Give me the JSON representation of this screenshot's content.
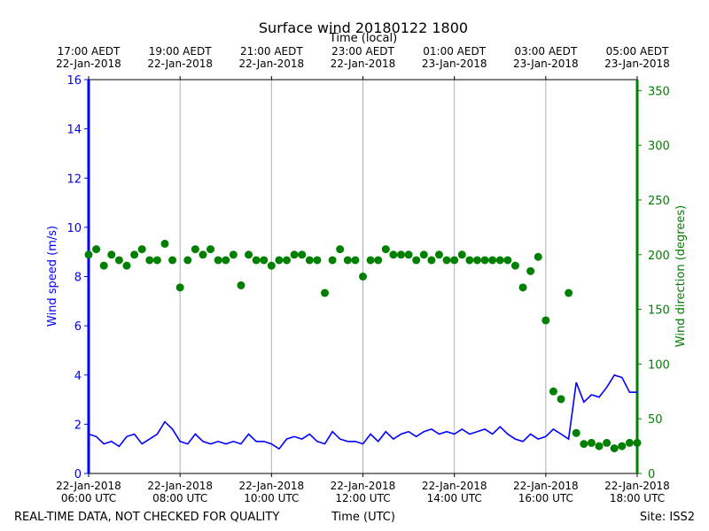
{
  "chart_data": {
    "type": "line-scatter",
    "title": "Surface wind 20180122 1800",
    "x_label": "Time (UTC)",
    "x2_label": "Time (local)",
    "y_label": "Wind speed (m/s)",
    "y2_label": "Wind direction (degrees)",
    "footer_left": "REAL-TIME DATA, NOT CHECKED FOR QUALITY",
    "footer_right": "Site: ISS2",
    "grid": "x",
    "xlim": [
      "2018-01-22T06:00",
      "2018-01-22T18:00"
    ],
    "xticks": [
      {
        "value": "2018-01-22T06:00",
        "label": [
          "22-Jan-2018",
          "06:00 UTC"
        ]
      },
      {
        "value": "2018-01-22T08:00",
        "label": [
          "22-Jan-2018",
          "08:00 UTC"
        ]
      },
      {
        "value": "2018-01-22T10:00",
        "label": [
          "22-Jan-2018",
          "10:00 UTC"
        ]
      },
      {
        "value": "2018-01-22T12:00",
        "label": [
          "22-Jan-2018",
          "12:00 UTC"
        ]
      },
      {
        "value": "2018-01-22T14:00",
        "label": [
          "22-Jan-2018",
          "14:00 UTC"
        ]
      },
      {
        "value": "2018-01-22T16:00",
        "label": [
          "22-Jan-2018",
          "16:00 UTC"
        ]
      },
      {
        "value": "2018-01-22T18:00",
        "label": [
          "22-Jan-2018",
          "18:00 UTC"
        ]
      }
    ],
    "x2ticks": [
      {
        "value": "2018-01-22T06:00",
        "label": [
          "17:00 AEDT",
          "22-Jan-2018"
        ]
      },
      {
        "value": "2018-01-22T08:00",
        "label": [
          "19:00 AEDT",
          "22-Jan-2018"
        ]
      },
      {
        "value": "2018-01-22T10:00",
        "label": [
          "21:00 AEDT",
          "22-Jan-2018"
        ]
      },
      {
        "value": "2018-01-22T12:00",
        "label": [
          "23:00 AEDT",
          "22-Jan-2018"
        ]
      },
      {
        "value": "2018-01-22T14:00",
        "label": [
          "01:00 AEDT",
          "23-Jan-2018"
        ]
      },
      {
        "value": "2018-01-22T16:00",
        "label": [
          "03:00 AEDT",
          "23-Jan-2018"
        ]
      },
      {
        "value": "2018-01-22T18:00",
        "label": [
          "05:00 AEDT",
          "23-Jan-2018"
        ]
      }
    ],
    "ylim": [
      0,
      16
    ],
    "yticks": [
      0,
      2,
      4,
      6,
      8,
      10,
      12,
      14,
      16
    ],
    "y2lim": [
      0,
      360
    ],
    "y2ticks": [
      0,
      50,
      100,
      150,
      200,
      250,
      300,
      350
    ],
    "x": [
      "2018-01-22T06:00",
      "2018-01-22T06:10",
      "2018-01-22T06:20",
      "2018-01-22T06:30",
      "2018-01-22T06:40",
      "2018-01-22T06:50",
      "2018-01-22T07:00",
      "2018-01-22T07:10",
      "2018-01-22T07:20",
      "2018-01-22T07:30",
      "2018-01-22T07:40",
      "2018-01-22T07:50",
      "2018-01-22T08:00",
      "2018-01-22T08:10",
      "2018-01-22T08:20",
      "2018-01-22T08:30",
      "2018-01-22T08:40",
      "2018-01-22T08:50",
      "2018-01-22T09:00",
      "2018-01-22T09:10",
      "2018-01-22T09:20",
      "2018-01-22T09:30",
      "2018-01-22T09:40",
      "2018-01-22T09:50",
      "2018-01-22T10:00",
      "2018-01-22T10:10",
      "2018-01-22T10:20",
      "2018-01-22T10:30",
      "2018-01-22T10:40",
      "2018-01-22T10:50",
      "2018-01-22T11:00",
      "2018-01-22T11:10",
      "2018-01-22T11:20",
      "2018-01-22T11:30",
      "2018-01-22T11:40",
      "2018-01-22T11:50",
      "2018-01-22T12:00",
      "2018-01-22T12:10",
      "2018-01-22T12:20",
      "2018-01-22T12:30",
      "2018-01-22T12:40",
      "2018-01-22T12:50",
      "2018-01-22T13:00",
      "2018-01-22T13:10",
      "2018-01-22T13:20",
      "2018-01-22T13:30",
      "2018-01-22T13:40",
      "2018-01-22T13:50",
      "2018-01-22T14:00",
      "2018-01-22T14:10",
      "2018-01-22T14:20",
      "2018-01-22T14:30",
      "2018-01-22T14:40",
      "2018-01-22T14:50",
      "2018-01-22T15:00",
      "2018-01-22T15:10",
      "2018-01-22T15:20",
      "2018-01-22T15:30",
      "2018-01-22T15:40",
      "2018-01-22T15:50",
      "2018-01-22T16:00",
      "2018-01-22T16:10",
      "2018-01-22T16:20",
      "2018-01-22T16:30",
      "2018-01-22T16:40",
      "2018-01-22T16:50",
      "2018-01-22T17:00",
      "2018-01-22T17:10",
      "2018-01-22T17:20",
      "2018-01-22T17:30",
      "2018-01-22T17:40",
      "2018-01-22T17:50",
      "2018-01-22T18:00"
    ],
    "series": [
      {
        "name": "Wind speed",
        "type": "line",
        "axis": "y",
        "color": "#0000ff",
        "values": [
          1.6,
          1.5,
          1.2,
          1.3,
          1.1,
          1.5,
          1.6,
          1.2,
          1.4,
          1.6,
          2.1,
          1.8,
          1.3,
          1.2,
          1.6,
          1.3,
          1.2,
          1.3,
          1.2,
          1.3,
          1.2,
          1.6,
          1.3,
          1.3,
          1.2,
          1.0,
          1.4,
          1.5,
          1.4,
          1.6,
          1.3,
          1.2,
          1.7,
          1.4,
          1.3,
          1.3,
          1.2,
          1.6,
          1.3,
          1.7,
          1.4,
          1.6,
          1.7,
          1.5,
          1.7,
          1.8,
          1.6,
          1.7,
          1.6,
          1.8,
          1.6,
          1.7,
          1.8,
          1.6,
          1.9,
          1.6,
          1.4,
          1.3,
          1.6,
          1.4,
          1.5,
          1.8,
          1.6,
          1.4,
          3.7,
          2.9,
          3.2,
          3.1,
          3.5,
          4.0,
          3.9,
          3.3,
          3.3
        ]
      },
      {
        "name": "Wind direction",
        "type": "scatter",
        "axis": "y2",
        "color": "#008000",
        "values": [
          200,
          205,
          190,
          200,
          195,
          190,
          200,
          205,
          195,
          195,
          210,
          195,
          170,
          195,
          205,
          200,
          205,
          195,
          195,
          200,
          172,
          200,
          195,
          195,
          190,
          195,
          195,
          200,
          200,
          195,
          195,
          165,
          195,
          205,
          195,
          195,
          180,
          195,
          195,
          205,
          200,
          200,
          200,
          195,
          200,
          195,
          200,
          195,
          195,
          200,
          195,
          195,
          195,
          195,
          195,
          195,
          190,
          170,
          185,
          198,
          140,
          75,
          68,
          165,
          37,
          27,
          28,
          25,
          28,
          23,
          25,
          28,
          28
        ]
      }
    ]
  }
}
